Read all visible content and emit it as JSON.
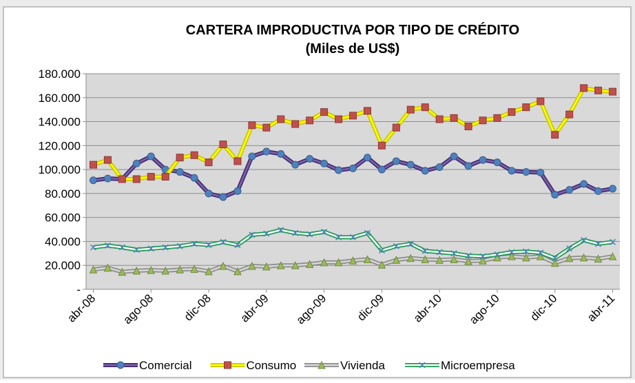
{
  "chart_data": {
    "type": "line",
    "title": "CARTERA IMPRODUCTIVA POR TIPO DE CRÉDITO",
    "subtitle": "(Miles de US$)",
    "categories": [
      "abr-08",
      null,
      null,
      null,
      "ago-08",
      null,
      null,
      null,
      "dic-08",
      null,
      null,
      null,
      "abr-09",
      null,
      null,
      null,
      "ago-09",
      null,
      null,
      null,
      "dic-09",
      null,
      null,
      null,
      "abr-10",
      null,
      null,
      null,
      "ago-10",
      null,
      null,
      null,
      "dic-10",
      null,
      null,
      null,
      "abr-11"
    ],
    "series": [
      {
        "name": "Comercial",
        "color": "#8064a2",
        "outline": "#3f2a78",
        "marker": "circle",
        "marker_color": "#4f81bd",
        "values": [
          91000,
          92500,
          92000,
          105000,
          111000,
          100000,
          98000,
          93000,
          80000,
          77000,
          82000,
          111000,
          115000,
          113000,
          104000,
          109000,
          105000,
          99500,
          101000,
          110000,
          100000,
          107000,
          104000,
          99000,
          102000,
          111000,
          103000,
          108000,
          106000,
          99000,
          98000,
          97500,
          79000,
          83000,
          88000,
          82000,
          84000
        ]
      },
      {
        "name": "Consumo",
        "color": "#ffff00",
        "outline": "#c9c900",
        "marker": "square",
        "marker_color": "#c0504d",
        "values": [
          104000,
          108000,
          92000,
          92000,
          94000,
          94000,
          110000,
          112000,
          106000,
          121000,
          107000,
          137000,
          135000,
          142000,
          138000,
          141000,
          148000,
          142000,
          145000,
          149000,
          120000,
          135000,
          150000,
          152000,
          142000,
          143000,
          136000,
          141000,
          143000,
          148000,
          152000,
          157000,
          129000,
          146000,
          168000,
          166000,
          165000
        ]
      },
      {
        "name": "Vivienda",
        "color": "#d9d9d9",
        "outline": "#8c8c8c",
        "marker": "triangle",
        "marker_color": "#9bbb59",
        "values": [
          16500,
          18000,
          14500,
          15500,
          16000,
          15500,
          16500,
          17000,
          15000,
          19500,
          15000,
          19500,
          19000,
          20000,
          20000,
          21000,
          22500,
          22500,
          24000,
          25000,
          20500,
          24500,
          26000,
          25000,
          24500,
          25000,
          23500,
          24000,
          26500,
          27500,
          26500,
          27500,
          22000,
          26000,
          26500,
          25500,
          27500
        ]
      },
      {
        "name": "Microempresa",
        "color": "#ffffff",
        "outline": "#1a9b50",
        "marker": "x",
        "marker_color": "#4f81bd",
        "values": [
          35000,
          36500,
          35000,
          33000,
          34000,
          35000,
          36000,
          38000,
          37000,
          39500,
          37000,
          45500,
          46500,
          49500,
          47000,
          46000,
          48000,
          43500,
          43500,
          47000,
          32500,
          36000,
          38000,
          32000,
          31000,
          30000,
          28000,
          27500,
          29000,
          31000,
          31500,
          30500,
          26000,
          34000,
          41000,
          38000,
          39500
        ]
      }
    ],
    "ylim": [
      0,
      180000
    ],
    "yticks": [
      {
        "value": 0,
        "label": "-"
      },
      {
        "value": 20000,
        "label": "20.000"
      },
      {
        "value": 40000,
        "label": "40.000"
      },
      {
        "value": 60000,
        "label": "60.000"
      },
      {
        "value": 80000,
        "label": "80.000"
      },
      {
        "value": 100000,
        "label": "100.000"
      },
      {
        "value": 120000,
        "label": "120.000"
      },
      {
        "value": 140000,
        "label": "140.000"
      },
      {
        "value": 160000,
        "label": "160.000"
      },
      {
        "value": 180000,
        "label": "180.000"
      }
    ],
    "grid": true,
    "legend": "bottom"
  }
}
